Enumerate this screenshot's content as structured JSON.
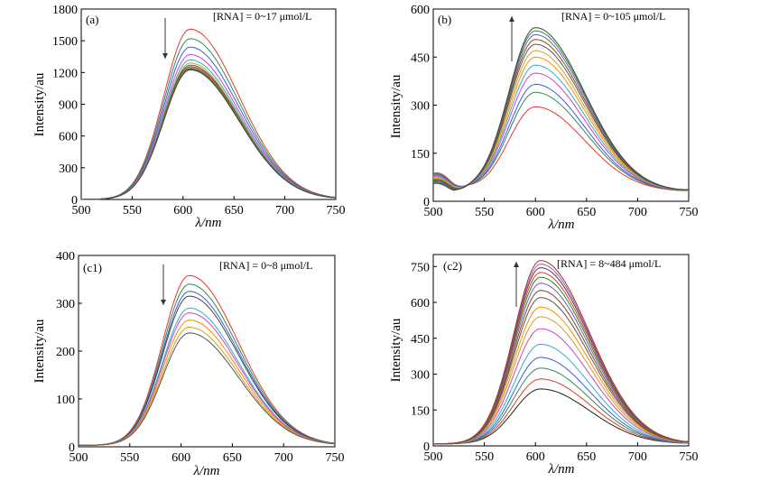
{
  "chart_data": [
    {
      "type": "line",
      "panel_label": "(a)",
      "annotation": "[RNA] = 0~17 μmol/L",
      "arrow": "down",
      "xlabel": "λ/nm",
      "ylabel": "Intensity/au",
      "xlim": [
        500,
        750
      ],
      "ylim": [
        0,
        1800
      ],
      "xticks": [
        500,
        550,
        600,
        650,
        700,
        750
      ],
      "yticks": [
        0,
        300,
        600,
        900,
        1200,
        1500,
        1800
      ],
      "peak_x": 607,
      "base": 0,
      "series": [
        {
          "color": "#e03a2e",
          "peak": 1610
        },
        {
          "color": "#2e8b57",
          "peak": 1520
        },
        {
          "color": "#3b5fd9",
          "peak": 1440
        },
        {
          "color": "#cc44cc",
          "peak": 1370
        },
        {
          "color": "#2ab3c7",
          "peak": 1320
        },
        {
          "color": "#c9a227",
          "peak": 1290
        },
        {
          "color": "#555555",
          "peak": 1270
        },
        {
          "color": "#8b4513",
          "peak": 1255
        },
        {
          "color": "#ff8c00",
          "peak": 1245
        },
        {
          "color": "#6a5acd",
          "peak": 1238
        },
        {
          "color": "#228b22",
          "peak": 1232
        },
        {
          "color": "#444444",
          "peak": 1225
        }
      ]
    },
    {
      "type": "line",
      "panel_label": "(b)",
      "annotation": "[RNA] = 0~105 μmol/L",
      "arrow": "up",
      "xlabel": "λ/nm",
      "ylabel": "Intensity/au",
      "xlim": [
        500,
        750
      ],
      "ylim": [
        0,
        600
      ],
      "xticks": [
        500,
        550,
        600,
        650,
        700,
        750
      ],
      "yticks": [
        0,
        150,
        300,
        450,
        600
      ],
      "peak_x": 600,
      "base": 30,
      "series": [
        {
          "color": "#e03a2e",
          "peak": 295
        },
        {
          "color": "#2e8b57",
          "peak": 340
        },
        {
          "color": "#3b5fd9",
          "peak": 365
        },
        {
          "color": "#cc44cc",
          "peak": 400
        },
        {
          "color": "#2ab3c7",
          "peak": 425
        },
        {
          "color": "#ff8c00",
          "peak": 450
        },
        {
          "color": "#c9a227",
          "peak": 470
        },
        {
          "color": "#555555",
          "peak": 490
        },
        {
          "color": "#8b4513",
          "peak": 505
        },
        {
          "color": "#6a5acd",
          "peak": 520
        },
        {
          "color": "#228b22",
          "peak": 532
        },
        {
          "color": "#444444",
          "peak": 542
        }
      ]
    },
    {
      "type": "line",
      "panel_label": "(c1)",
      "annotation": "[RNA] = 0~8 μmol/L",
      "arrow": "down",
      "xlabel": "λ/nm",
      "ylabel": "Intensity/au",
      "xlim": [
        500,
        750
      ],
      "ylim": [
        0,
        400
      ],
      "xticks": [
        500,
        550,
        600,
        650,
        700,
        750
      ],
      "yticks": [
        0,
        100,
        200,
        300,
        400
      ],
      "peak_x": 608,
      "base": 3,
      "series": [
        {
          "color": "#e03a2e",
          "peak": 358
        },
        {
          "color": "#2e8b57",
          "peak": 340
        },
        {
          "color": "#3b5fd9",
          "peak": 325
        },
        {
          "color": "#444444",
          "peak": 315
        },
        {
          "color": "#2ab3c7",
          "peak": 290
        },
        {
          "color": "#cc44cc",
          "peak": 280
        },
        {
          "color": "#ff8c00",
          "peak": 265
        },
        {
          "color": "#c9a227",
          "peak": 250
        },
        {
          "color": "#555555",
          "peak": 238
        }
      ]
    },
    {
      "type": "line",
      "panel_label": "(c2)",
      "annotation": "[RNA] = 8~484 μmol/L",
      "arrow": "up",
      "xlabel": "λ/nm",
      "ylabel": "Intensity/au",
      "xlim": [
        500,
        750
      ],
      "ylim": [
        0,
        800
      ],
      "xticks": [
        500,
        550,
        600,
        650,
        700,
        750
      ],
      "yticks": [
        0,
        150,
        300,
        450,
        600,
        750
      ],
      "peak_x": 605,
      "base": 8,
      "series": [
        {
          "color": "#222222",
          "peak": 238
        },
        {
          "color": "#e03a2e",
          "peak": 280
        },
        {
          "color": "#2e8b57",
          "peak": 325
        },
        {
          "color": "#3b5fd9",
          "peak": 370
        },
        {
          "color": "#2ab3c7",
          "peak": 425
        },
        {
          "color": "#cc44cc",
          "peak": 490
        },
        {
          "color": "#c9a227",
          "peak": 540
        },
        {
          "color": "#ff8c00",
          "peak": 580
        },
        {
          "color": "#555555",
          "peak": 620
        },
        {
          "color": "#8b4513",
          "peak": 650
        },
        {
          "color": "#6a5acd",
          "peak": 680
        },
        {
          "color": "#228b22",
          "peak": 705
        },
        {
          "color": "#e03a2e",
          "peak": 725
        },
        {
          "color": "#444444",
          "peak": 745
        },
        {
          "color": "#cc44cc",
          "peak": 760
        },
        {
          "color": "#8b4513",
          "peak": 775
        }
      ]
    }
  ]
}
